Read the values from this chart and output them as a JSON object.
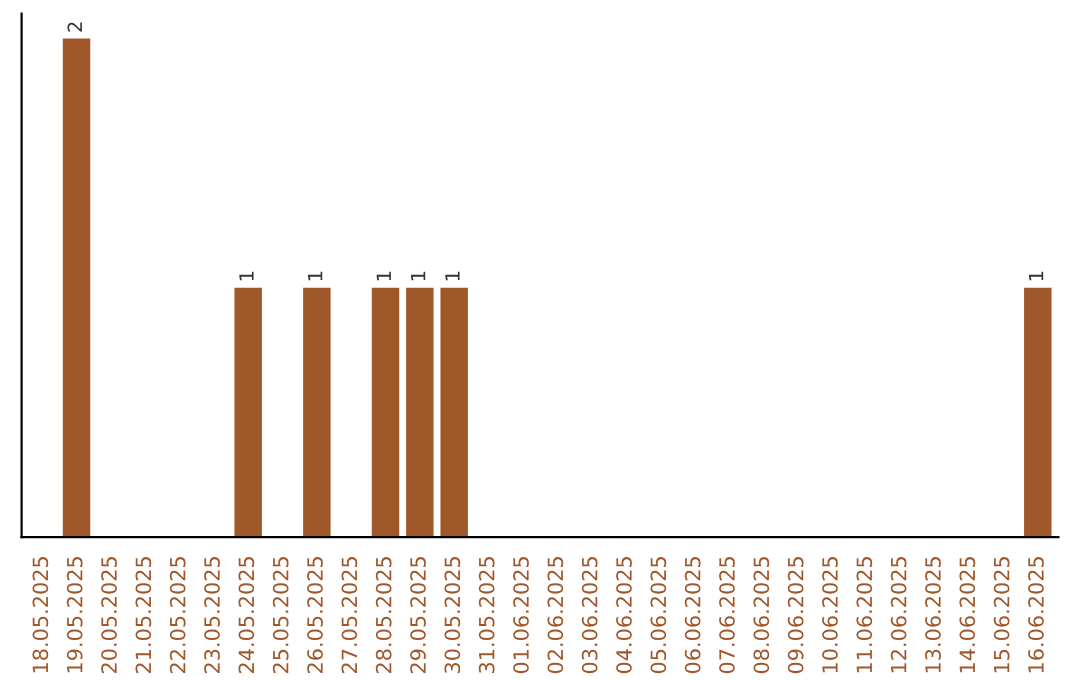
{
  "chart_data": {
    "type": "bar",
    "categories": [
      "18.05.2025",
      "19.05.2025",
      "20.05.2025",
      "21.05.2025",
      "22.05.2025",
      "23.05.2025",
      "24.05.2025",
      "25.05.2025",
      "26.05.2025",
      "27.05.2025",
      "28.05.2025",
      "29.05.2025",
      "30.05.2025",
      "31.05.2025",
      "01.06.2025",
      "02.06.2025",
      "03.06.2025",
      "04.06.2025",
      "05.06.2025",
      "06.06.2025",
      "07.06.2025",
      "08.06.2025",
      "09.06.2025",
      "10.06.2025",
      "11.06.2025",
      "12.06.2025",
      "13.06.2025",
      "14.06.2025",
      "15.06.2025",
      "16.06.2025"
    ],
    "values": [
      0,
      2,
      0,
      0,
      0,
      0,
      1,
      0,
      1,
      0,
      1,
      1,
      1,
      0,
      0,
      0,
      0,
      0,
      0,
      0,
      0,
      0,
      0,
      0,
      0,
      0,
      0,
      0,
      0,
      1
    ],
    "value_labels": [
      null,
      "2",
      null,
      null,
      null,
      null,
      "1",
      null,
      "1",
      null,
      "1",
      "1",
      "1",
      null,
      null,
      null,
      null,
      null,
      null,
      null,
      null,
      null,
      null,
      null,
      null,
      null,
      null,
      null,
      null,
      "1"
    ],
    "color": "#a0572a",
    "tick_labels": "x",
    "grid": false,
    "legend": false
  }
}
